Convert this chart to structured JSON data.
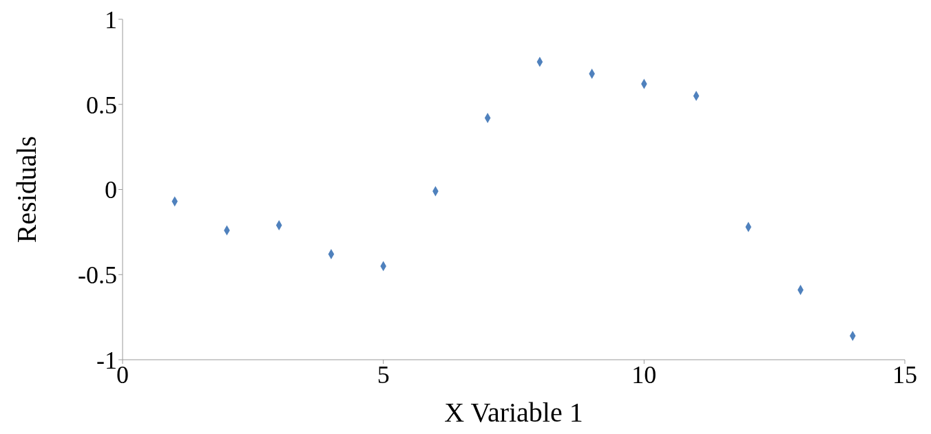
{
  "chart_data": {
    "type": "scatter",
    "xlabel": "X Variable 1",
    "ylabel": "Residuals",
    "x": [
      1,
      2,
      3,
      4,
      5,
      6,
      7,
      8,
      9,
      10,
      11,
      12,
      13,
      14
    ],
    "series": [
      {
        "color": "#4f81bd",
        "values": [
          -0.07,
          -0.24,
          -0.21,
          -0.38,
          -0.45,
          -0.01,
          0.42,
          0.75,
          0.68,
          0.62,
          0.55,
          -0.22,
          -0.59,
          -0.86
        ]
      }
    ],
    "xlim": [
      0,
      15
    ],
    "xticks": [
      0,
      5,
      10,
      15
    ],
    "ylim": [
      -1,
      1
    ],
    "yticks": [
      -1,
      -0.5,
      0,
      0.5,
      1
    ],
    "grid": false,
    "legend": false,
    "marker": "diamond"
  }
}
